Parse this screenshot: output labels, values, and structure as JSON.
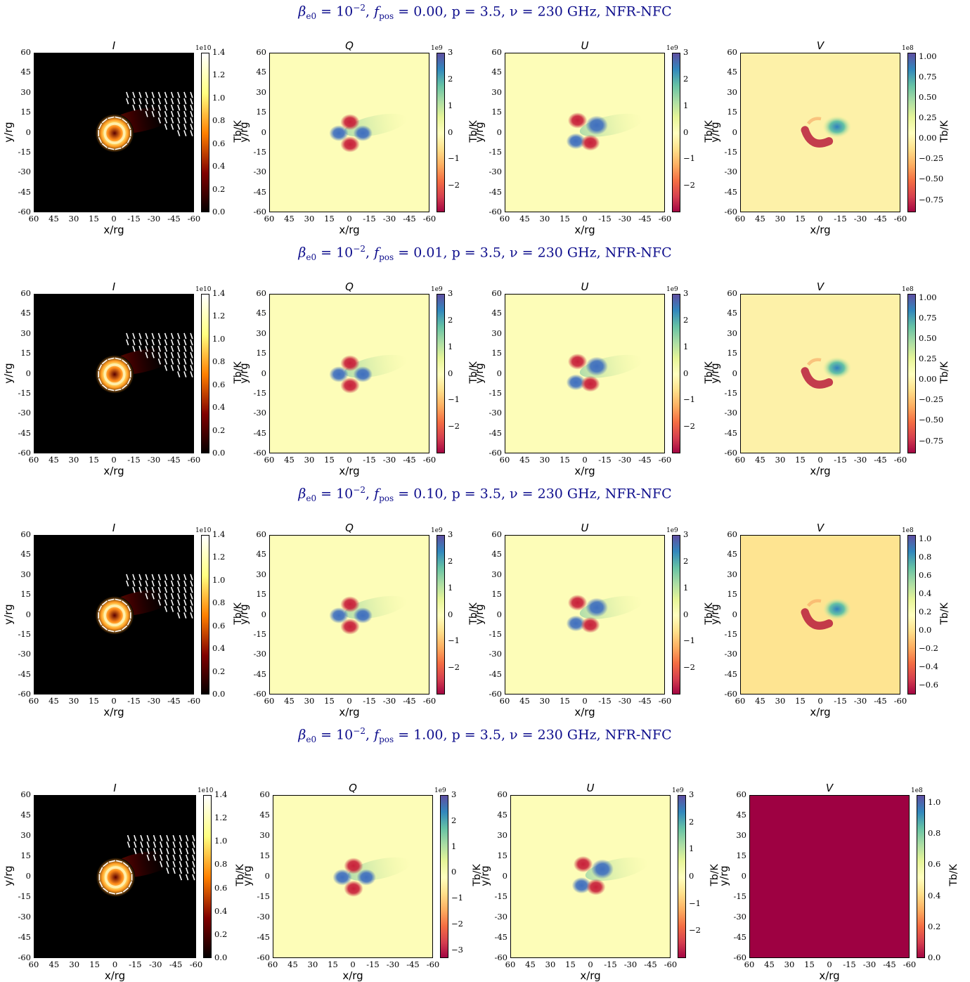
{
  "figure_rows": [
    {
      "title_parts": {
        "beta": "β",
        "sub": "e0",
        "eq": " = 10",
        "exp": "−2",
        "fpos_label": "f",
        "fpos_sub": "pos",
        "fpos_val": " = 0.00",
        "rest": ", p = 3.5, ν = 230 GHz, NFR-NFC"
      }
    },
    {
      "title_parts": {
        "beta": "β",
        "sub": "e0",
        "eq": " = 10",
        "exp": "−2",
        "fpos_label": "f",
        "fpos_sub": "pos",
        "fpos_val": " = 0.01",
        "rest": ", p = 3.5, ν = 230 GHz, NFR-NFC"
      }
    },
    {
      "title_parts": {
        "beta": "β",
        "sub": "e0",
        "eq": " = 10",
        "exp": "−2",
        "fpos_label": "f",
        "fpos_sub": "pos",
        "fpos_val": " = 0.10",
        "rest": ", p = 3.5, ν = 230 GHz, NFR-NFC"
      }
    },
    {
      "title_parts": {
        "beta": "β",
        "sub": "e0",
        "eq": " = 10",
        "exp": "−2",
        "fpos_label": "f",
        "fpos_sub": "pos",
        "fpos_val": " = 1.00",
        "rest": ", p = 3.5, ν = 230 GHz, NFR-NFC"
      }
    }
  ],
  "chart_data": {
    "type": "heatmap",
    "description_panels": [
      "I",
      "Q",
      "U",
      "V"
    ],
    "xlabel": "x/rg",
    "ylabel": "y/rg",
    "colorbar_label": "Tb/K",
    "x_ticks": [
      "60",
      "45",
      "30",
      "15",
      "0",
      "-15",
      "-30",
      "-45",
      "-60"
    ],
    "y_ticks": [
      "60",
      "45",
      "30",
      "15",
      "0",
      "-15",
      "-30",
      "-45",
      "-60"
    ],
    "xlim": [
      60,
      -60
    ],
    "ylim": [
      -60,
      60
    ],
    "colormaps": {
      "I": "afmhot",
      "Q": "Spectral",
      "U": "Spectral",
      "V": "Spectral"
    },
    "colors": {
      "spectral_low": "#9e0142",
      "spectral_mid": "#ffffbf",
      "spectral_high": "#5e4fa2",
      "spectral_blue": "#3288bd",
      "afmhot_high": "#ffffff",
      "afmhot_low": "#000000"
    },
    "rows": [
      {
        "fpos": 0.0,
        "I": {
          "exp": "1e10",
          "ticks": [
            "1.4",
            "1.2",
            "1.0",
            "0.8",
            "0.6",
            "0.4",
            "0.2",
            "0.0"
          ],
          "range": [
            0,
            1.4
          ]
        },
        "Q": {
          "exp": "1e9",
          "ticks": [
            "3",
            "2",
            "1",
            "0",
            "−1",
            "−2"
          ],
          "range": [
            -3,
            3
          ]
        },
        "U": {
          "exp": "1e9",
          "ticks": [
            "3",
            "2",
            "1",
            "0",
            "−1",
            "−2"
          ],
          "range": [
            -3,
            3
          ]
        },
        "V": {
          "exp": "1e8",
          "ticks": [
            "1.00",
            "0.75",
            "0.50",
            "0.25",
            "0.00",
            "−0.25",
            "−0.50",
            "−0.75"
          ],
          "range": [
            -0.9,
            1.05
          ]
        }
      },
      {
        "fpos": 0.01,
        "I": {
          "exp": "1e10",
          "ticks": [
            "1.4",
            "1.2",
            "1.0",
            "0.8",
            "0.6",
            "0.4",
            "0.2",
            "0.0"
          ],
          "range": [
            0,
            1.4
          ]
        },
        "Q": {
          "exp": "1e9",
          "ticks": [
            "3",
            "2",
            "1",
            "0",
            "−1",
            "−2"
          ],
          "range": [
            -3,
            3
          ]
        },
        "U": {
          "exp": "1e9",
          "ticks": [
            "3",
            "2",
            "1",
            "0",
            "−1",
            "−2"
          ],
          "range": [
            -3,
            3
          ]
        },
        "V": {
          "exp": "1e8",
          "ticks": [
            "1.00",
            "0.75",
            "0.50",
            "0.25",
            "0.00",
            "−0.25",
            "−0.50",
            "−0.75"
          ],
          "range": [
            -0.9,
            1.05
          ]
        }
      },
      {
        "fpos": 0.1,
        "I": {
          "exp": "1e10",
          "ticks": [
            "1.4",
            "1.2",
            "1.0",
            "0.8",
            "0.6",
            "0.4",
            "0.2",
            "0.0"
          ],
          "range": [
            0,
            1.4
          ]
        },
        "Q": {
          "exp": "1e9",
          "ticks": [
            "3",
            "2",
            "1",
            "0",
            "−1",
            "−2"
          ],
          "range": [
            -3,
            3
          ]
        },
        "U": {
          "exp": "1e9",
          "ticks": [
            "3",
            "2",
            "1",
            "0",
            "−1",
            "−2"
          ],
          "range": [
            -3,
            3
          ]
        },
        "V": {
          "exp": "1e8",
          "ticks": [
            "1.0",
            "0.8",
            "0.6",
            "0.4",
            "0.2",
            "0.0",
            "−0.2",
            "−0.4",
            "−0.6"
          ],
          "range": [
            -0.7,
            1.05
          ]
        }
      },
      {
        "fpos": 1.0,
        "I": {
          "exp": "1e10",
          "ticks": [
            "1.4",
            "1.2",
            "1.0",
            "0.8",
            "0.6",
            "0.4",
            "0.2",
            "0.0"
          ],
          "range": [
            0,
            1.4
          ]
        },
        "Q": {
          "exp": "1e9",
          "ticks": [
            "3",
            "2",
            "1",
            "0",
            "−1",
            "−2",
            "−3"
          ],
          "range": [
            -3.3,
            3
          ]
        },
        "U": {
          "exp": "1e9",
          "ticks": [
            "3",
            "2",
            "1",
            "0",
            "−1",
            "−2"
          ],
          "range": [
            -3,
            3
          ]
        },
        "V": {
          "exp": "1e8",
          "ticks": [
            "1.0",
            "0.8",
            "0.6",
            "0.4",
            "0.2",
            "0.0"
          ],
          "range": [
            0,
            1.05
          ]
        }
      }
    ]
  }
}
